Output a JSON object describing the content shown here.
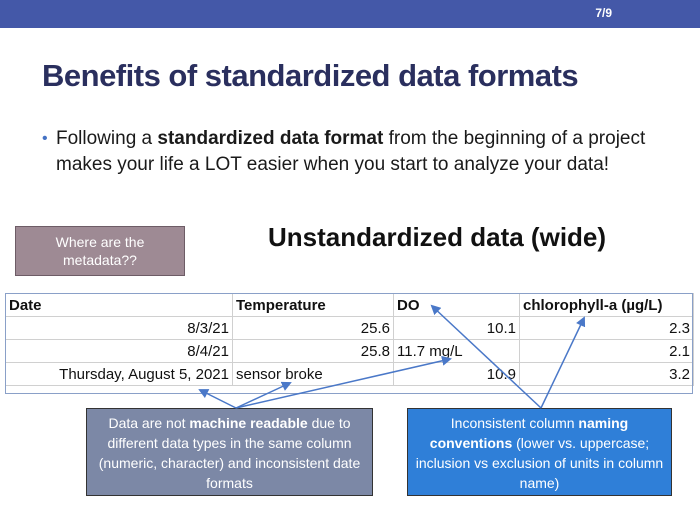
{
  "slide": {
    "page_number": "7/9",
    "title": "Benefits of standardized data formats",
    "bullet": {
      "pre": "Following a ",
      "bold": "standardized data format",
      "post": " from the beginning of a project makes your life a LOT easier when you start to analyze your data!"
    },
    "metadata_box": "Where are the metadata??",
    "table_heading": "Unstandardized data (wide)",
    "table": {
      "headers": [
        "Date",
        "Temperature",
        "DO",
        "chlorophyll-a (µg/L)"
      ],
      "rows": [
        [
          "8/3/21",
          "25.6",
          "10.1",
          "2.3"
        ],
        [
          "8/4/21",
          "25.8",
          "11.7 mg/L",
          "2.1"
        ],
        [
          "Thursday, August 5, 2021",
          "sensor broke",
          "10.9",
          "3.2"
        ]
      ]
    },
    "callout_left": {
      "pre": "Data are not ",
      "bold": "machine readable",
      "post": " due to different data types in the same column (numeric, character) and inconsistent date formats"
    },
    "callout_right": {
      "pre": "Inconsistent column ",
      "bold": "naming conventions",
      "post": " (lower vs. uppercase; inclusion vs exclusion of units in column name)"
    },
    "colors": {
      "topbar": "#4458a8",
      "title": "#2a2f5e",
      "metadata_box": "#9e8a94",
      "callout_left": "#7c88a6",
      "callout_right": "#2f7fd8",
      "arrow": "#4a78c8"
    }
  }
}
